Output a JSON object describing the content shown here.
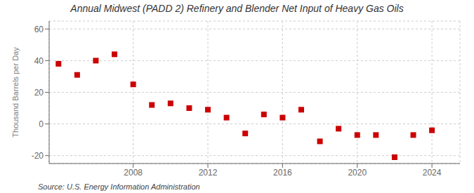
{
  "chart_data": {
    "type": "scatter",
    "title": "Annual Midwest (PADD 2) Refinery and Blender Net Input of Heavy Gas Oils",
    "ylabel": "Thousand Barrels per Day",
    "annotation": "Source: U.S. Energy Information Administration",
    "x": [
      2004,
      2005,
      2006,
      2007,
      2008,
      2009,
      2010,
      2011,
      2012,
      2013,
      2014,
      2015,
      2016,
      2017,
      2018,
      2019,
      2020,
      2021,
      2022,
      2023,
      2024
    ],
    "values": [
      38,
      31,
      40,
      44,
      25,
      12,
      13,
      10,
      9,
      4,
      -6,
      6,
      4,
      9,
      -11,
      -3,
      -7,
      -7,
      -21,
      -7,
      -4
    ],
    "color": "#cc0000",
    "marker": "square",
    "xlim": [
      2003.5,
      2025.5
    ],
    "ylim": [
      -25,
      65
    ],
    "xticks": [
      2008,
      2012,
      2016,
      2020,
      2024
    ],
    "yticks": [
      -20,
      0,
      20,
      40,
      60
    ],
    "grid": true
  }
}
